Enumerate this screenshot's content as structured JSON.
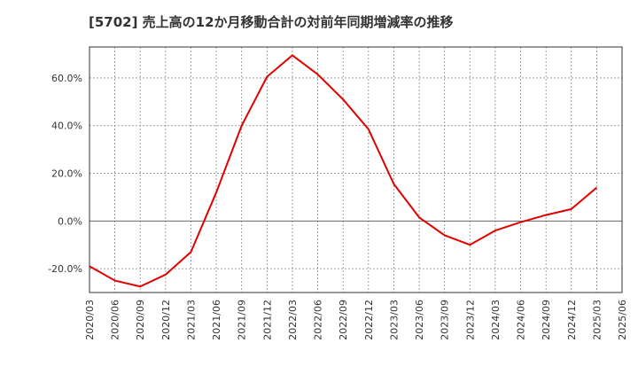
{
  "chart_data": {
    "type": "line",
    "title": "[5702]  売上高の12か月移動合計の対前年同期増減率の推移",
    "xlabel": "",
    "ylabel": "",
    "ylim": [
      -30,
      73
    ],
    "yticks": [
      -20,
      0,
      20,
      40,
      60
    ],
    "ytick_labels": [
      "-20.0%",
      "0.0%",
      "20.0%",
      "40.0%",
      "60.0%"
    ],
    "categories": [
      "2020/03",
      "2020/06",
      "2020/09",
      "2020/12",
      "2021/03",
      "2021/06",
      "2021/09",
      "2021/12",
      "2022/03",
      "2022/06",
      "2022/09",
      "2022/12",
      "2023/03",
      "2023/06",
      "2023/09",
      "2023/12",
      "2024/03",
      "2024/06",
      "2024/09",
      "2024/12",
      "2025/03",
      "2025/06"
    ],
    "series": [
      {
        "name": "増減率",
        "color": "#e00000",
        "values": [
          -19,
          -25,
          -27.5,
          -22.5,
          -13,
          12,
          40,
          60.5,
          69.5,
          61.5,
          51,
          38.5,
          15.5,
          1.5,
          -6,
          -10,
          -4,
          -0.5,
          2.5,
          5,
          14,
          null
        ]
      }
    ],
    "grid": true,
    "legend": "none"
  }
}
